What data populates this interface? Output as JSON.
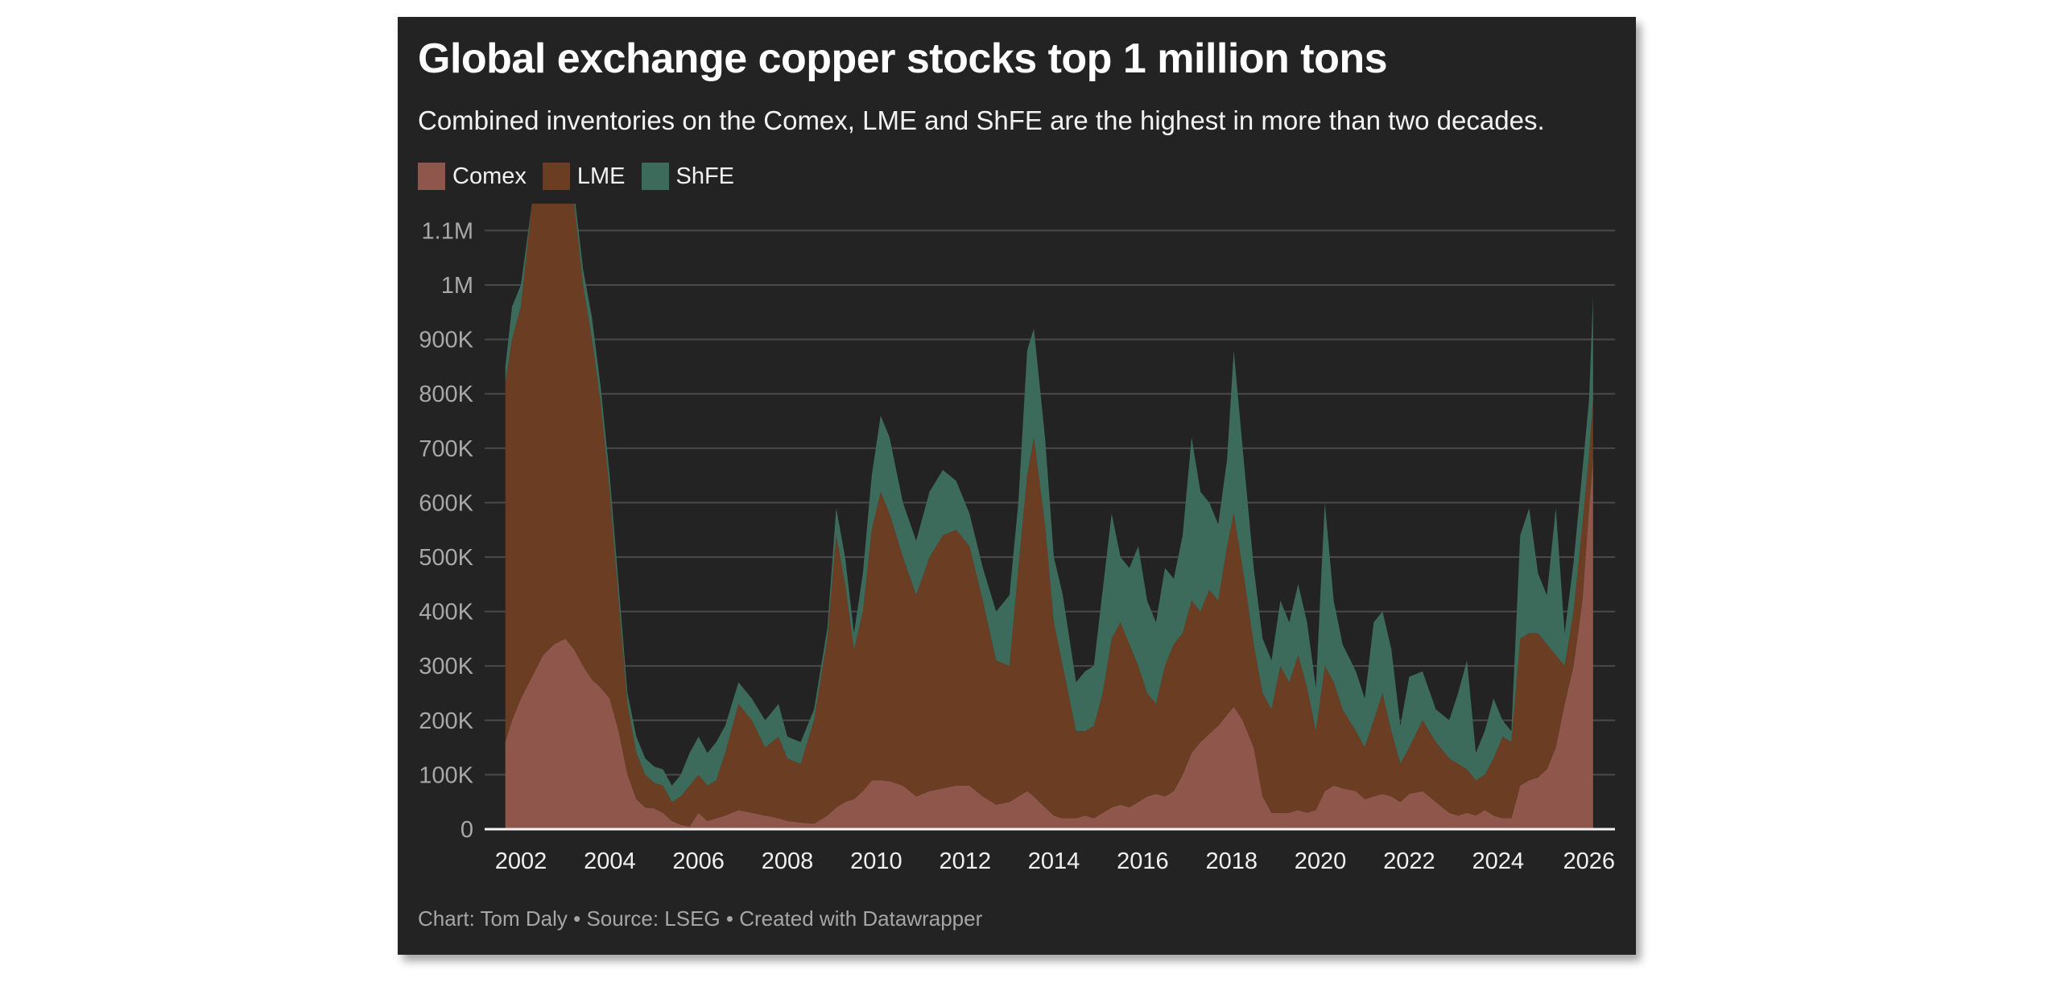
{
  "chart_data": {
    "type": "area",
    "stacked": true,
    "title": "Global exchange copper stocks top 1 million tons",
    "subtitle": "Combined inventories on the Comex, LME and ShFE are the highest in more than two decades.",
    "xlabel": "",
    "ylabel": "",
    "ylim": [
      0,
      1150000
    ],
    "xlim": [
      2001.65,
      2026.15
    ],
    "grid": true,
    "legend_position": "top-left",
    "y_ticks": [
      {
        "value": 0,
        "label": "0"
      },
      {
        "value": 100000,
        "label": "100K"
      },
      {
        "value": 200000,
        "label": "200K"
      },
      {
        "value": 300000,
        "label": "300K"
      },
      {
        "value": 400000,
        "label": "400K"
      },
      {
        "value": 500000,
        "label": "500K"
      },
      {
        "value": 600000,
        "label": "600K"
      },
      {
        "value": 700000,
        "label": "700K"
      },
      {
        "value": 800000,
        "label": "800K"
      },
      {
        "value": 900000,
        "label": "900K"
      },
      {
        "value": 1000000,
        "label": "1M"
      },
      {
        "value": 1100000,
        "label": "1.1M"
      }
    ],
    "x_ticks": [
      {
        "value": 2002,
        "label": "2002"
      },
      {
        "value": 2004,
        "label": "2004"
      },
      {
        "value": 2006,
        "label": "2006"
      },
      {
        "value": 2008,
        "label": "2008"
      },
      {
        "value": 2010,
        "label": "2010"
      },
      {
        "value": 2012,
        "label": "2012"
      },
      {
        "value": 2014,
        "label": "2014"
      },
      {
        "value": 2016,
        "label": "2016"
      },
      {
        "value": 2018,
        "label": "2018"
      },
      {
        "value": 2020,
        "label": "2020"
      },
      {
        "value": 2022,
        "label": "2022"
      },
      {
        "value": 2024,
        "label": "2024"
      },
      {
        "value": 2026,
        "label": "2026"
      }
    ],
    "x": [
      2001.65,
      2001.8,
      2002.0,
      2002.25,
      2002.5,
      2002.75,
      2003.0,
      2003.2,
      2003.4,
      2003.6,
      2003.8,
      2004.0,
      2004.2,
      2004.4,
      2004.6,
      2004.8,
      2005.0,
      2005.2,
      2005.4,
      2005.6,
      2005.8,
      2006.0,
      2006.2,
      2006.4,
      2006.6,
      2006.9,
      2007.2,
      2007.5,
      2007.8,
      2008.0,
      2008.3,
      2008.6,
      2008.9,
      2009.1,
      2009.3,
      2009.5,
      2009.7,
      2009.9,
      2010.1,
      2010.3,
      2010.6,
      2010.9,
      2011.2,
      2011.5,
      2011.8,
      2012.1,
      2012.4,
      2012.7,
      2013.0,
      2013.2,
      2013.4,
      2013.55,
      2013.8,
      2014.0,
      2014.2,
      2014.5,
      2014.7,
      2014.9,
      2015.1,
      2015.3,
      2015.5,
      2015.7,
      2015.9,
      2016.1,
      2016.3,
      2016.5,
      2016.7,
      2016.9,
      2017.1,
      2017.3,
      2017.5,
      2017.7,
      2017.9,
      2018.05,
      2018.25,
      2018.5,
      2018.7,
      2018.9,
      2019.1,
      2019.3,
      2019.5,
      2019.7,
      2019.9,
      2020.1,
      2020.3,
      2020.5,
      2020.8,
      2021.0,
      2021.2,
      2021.4,
      2021.6,
      2021.8,
      2022.0,
      2022.3,
      2022.6,
      2022.9,
      2023.1,
      2023.3,
      2023.5,
      2023.7,
      2023.9,
      2024.1,
      2024.3,
      2024.5,
      2024.7,
      2024.9,
      2025.1,
      2025.3,
      2025.5,
      2025.7,
      2025.9,
      2026.05,
      2026.14
    ],
    "series": [
      {
        "name": "Comex",
        "color": "#8f574b",
        "values": [
          160000,
          200000,
          240000,
          280000,
          320000,
          340000,
          350000,
          330000,
          300000,
          275000,
          260000,
          240000,
          180000,
          100000,
          55000,
          40000,
          38000,
          30000,
          15000,
          8000,
          5000,
          30000,
          15000,
          20000,
          25000,
          35000,
          30000,
          25000,
          20000,
          15000,
          12000,
          10000,
          25000,
          40000,
          50000,
          55000,
          70000,
          90000,
          90000,
          88000,
          80000,
          60000,
          70000,
          75000,
          80000,
          80000,
          60000,
          45000,
          50000,
          60000,
          70000,
          60000,
          40000,
          25000,
          20000,
          20000,
          25000,
          20000,
          30000,
          40000,
          45000,
          40000,
          50000,
          60000,
          65000,
          60000,
          70000,
          100000,
          140000,
          160000,
          175000,
          190000,
          210000,
          225000,
          200000,
          150000,
          60000,
          30000,
          30000,
          30000,
          35000,
          30000,
          35000,
          70000,
          80000,
          75000,
          70000,
          55000,
          60000,
          65000,
          60000,
          50000,
          65000,
          70000,
          50000,
          30000,
          25000,
          30000,
          25000,
          35000,
          25000,
          20000,
          20000,
          80000,
          90000,
          95000,
          110000,
          150000,
          230000,
          300000,
          420000,
          590000,
          680000
        ]
      },
      {
        "name": "LME",
        "color": "#6b3d22",
        "values": [
          660000,
          700000,
          720000,
          870000,
          880000,
          910000,
          900000,
          820000,
          700000,
          625000,
          520000,
          380000,
          240000,
          130000,
          85000,
          60000,
          47000,
          50000,
          35000,
          52000,
          75000,
          70000,
          65000,
          70000,
          115000,
          195000,
          170000,
          125000,
          150000,
          115000,
          108000,
          190000,
          325000,
          500000,
          400000,
          275000,
          330000,
          460000,
          530000,
          492000,
          420000,
          370000,
          430000,
          465000,
          470000,
          440000,
          360000,
          265000,
          250000,
          420000,
          580000,
          660000,
          520000,
          355000,
          280000,
          160000,
          155000,
          170000,
          220000,
          310000,
          335000,
          300000,
          250000,
          190000,
          165000,
          240000,
          270000,
          260000,
          280000,
          240000,
          265000,
          230000,
          310000,
          355000,
          280000,
          190000,
          190000,
          190000,
          270000,
          240000,
          285000,
          230000,
          145000,
          230000,
          190000,
          145000,
          110000,
          95000,
          140000,
          185000,
          120000,
          70000,
          85000,
          130000,
          110000,
          100000,
          95000,
          80000,
          65000,
          65000,
          105000,
          150000,
          140000,
          270000,
          270000,
          265000,
          230000,
          170000,
          70000,
          100000,
          140000,
          100000,
          110000
        ]
      },
      {
        "name": "ShFE",
        "color": "#3d6b5b",
        "values": [
          30000,
          60000,
          40000,
          0,
          20000,
          20000,
          20000,
          20000,
          30000,
          40000,
          30000,
          30000,
          30000,
          20000,
          30000,
          30000,
          30000,
          30000,
          30000,
          40000,
          60000,
          70000,
          60000,
          70000,
          50000,
          40000,
          40000,
          50000,
          60000,
          40000,
          40000,
          20000,
          20000,
          50000,
          50000,
          30000,
          70000,
          100000,
          140000,
          140000,
          100000,
          100000,
          120000,
          120000,
          90000,
          60000,
          60000,
          90000,
          130000,
          120000,
          230000,
          200000,
          160000,
          120000,
          130000,
          90000,
          110000,
          110000,
          190000,
          230000,
          120000,
          140000,
          220000,
          170000,
          150000,
          180000,
          120000,
          180000,
          300000,
          220000,
          160000,
          140000,
          160000,
          300000,
          220000,
          140000,
          100000,
          90000,
          120000,
          110000,
          130000,
          120000,
          80000,
          300000,
          150000,
          120000,
          110000,
          90000,
          180000,
          150000,
          150000,
          70000,
          130000,
          90000,
          60000,
          70000,
          130000,
          200000,
          50000,
          80000,
          110000,
          30000,
          20000,
          190000,
          230000,
          110000,
          90000,
          270000,
          60000,
          90000,
          100000,
          100000,
          190000
        ]
      }
    ]
  },
  "footer": {
    "credit": "Chart: Tom Daly • Source: LSEG • Created with Datawrapper"
  }
}
